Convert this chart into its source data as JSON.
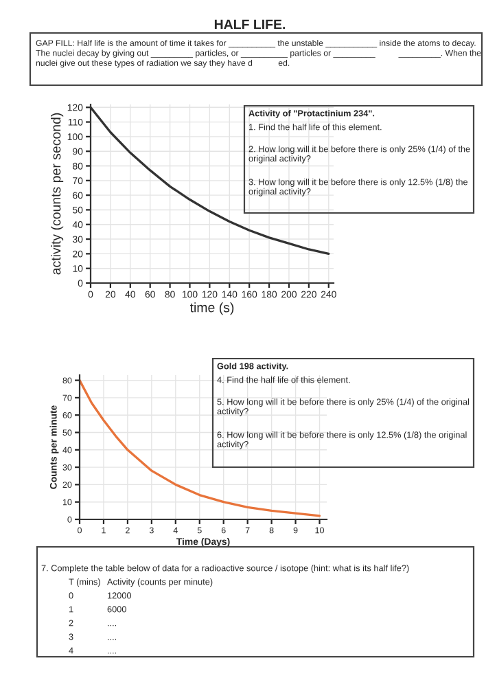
{
  "chart_data": [
    {
      "type": "line",
      "title": "HALF LIFE.",
      "subtitle": "GAP FILL: Half life is the amount of time it takes for __________ the unstable ___________ inside the atoms to decay. The nuclei decay by giving out _________ particles, or __________ particles or _________          _________. When the nuclei give out these types of radiation we say they have d           ed.",
      "xlabel": "time (s)",
      "ylabel": "activity (counts per second)",
      "x": [
        0,
        20,
        40,
        60,
        80,
        100,
        120,
        140,
        160,
        180,
        200,
        220,
        240
      ],
      "series": [
        {
          "color": "#333333",
          "values": [
            120,
            103,
            89,
            77,
            66,
            57,
            49,
            42,
            36,
            31,
            27,
            23,
            20
          ]
        }
      ],
      "xlim": [
        0,
        245
      ],
      "ylim": [
        0,
        122
      ],
      "xticks": [
        0,
        20,
        40,
        60,
        80,
        100,
        120,
        140,
        160,
        180,
        200,
        220,
        240
      ],
      "yticks": [
        0,
        10,
        20,
        30,
        40,
        50,
        60,
        70,
        80,
        90,
        100,
        110,
        120
      ],
      "grid": true,
      "marker": "none",
      "line_style": "solid",
      "annotations": [
        "Activity of \"Protactinium 234\".",
        "1. Find the half life of this element.",
        "2. How long will it be before there is only 25% (1/4) of the original activity?",
        "3. How long will it be before there is only 12.5% (1/8) the original activity?"
      ]
    },
    {
      "type": "line",
      "xlabel": "Time (Days)",
      "ylabel": "Counts per minute",
      "x": [
        0,
        0.5,
        1,
        1.5,
        2,
        3,
        4,
        5,
        6,
        7,
        8,
        9,
        10
      ],
      "series": [
        {
          "color": "#e8743b",
          "values": [
            80,
            67,
            57,
            48,
            40,
            28,
            20,
            14,
            10,
            7,
            5,
            3.5,
            2
          ]
        }
      ],
      "xlim": [
        0,
        10.3
      ],
      "ylim": [
        0,
        83
      ],
      "xticks": [
        0,
        1,
        2,
        3,
        4,
        5,
        6,
        7,
        8,
        9,
        10
      ],
      "yticks": [
        0,
        10,
        20,
        30,
        40,
        50,
        60,
        70,
        80
      ],
      "grid": true,
      "marker": "none",
      "line_style": "solid",
      "annotations": [
        "Gold 198 activity.",
        "4. Find the half life of this element.",
        "5. How long will it be before there is only 25% (1/4) of the original activity?",
        "6. How long will it be before there is only 12.5% (1/8) the original activity?",
        "7. Complete the table below of data for a radioactive source / isotope (hint: what is its half life?)",
        "T (mins)",
        "Activity (counts per minute)",
        "0",
        "12000",
        "1",
        "6000",
        "2",
        "....",
        "3",
        "....",
        "4",
        "...."
      ]
    }
  ]
}
